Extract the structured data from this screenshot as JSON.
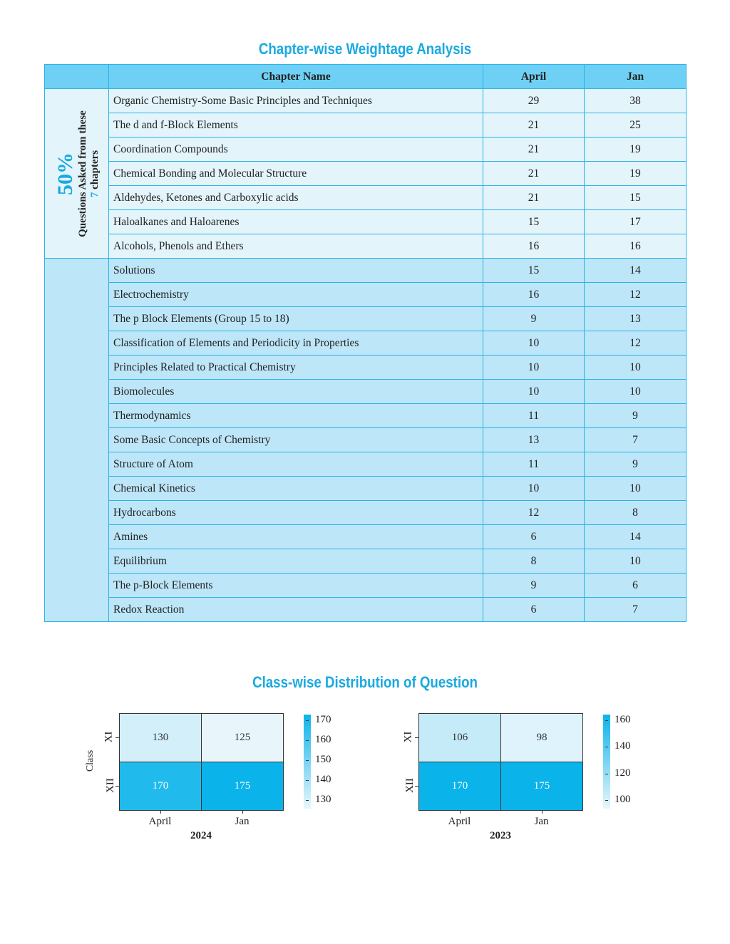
{
  "table_title": "Chapter-wise Weightage Analysis",
  "headers": {
    "chapter": "Chapter Name",
    "april": "April",
    "jan": "Jan"
  },
  "side_label": {
    "percent": "50%",
    "line1": "Questions Asked from these",
    "line2_num": "7",
    "line2_text": " chapters"
  },
  "rows": [
    {
      "name": "Organic Chemistry-Some Basic Principles and Techniques",
      "april": "29",
      "jan": "38"
    },
    {
      "name": "The d and f-Block Elements",
      "april": "21",
      "jan": "25"
    },
    {
      "name": "Coordination Compounds",
      "april": "21",
      "jan": "19"
    },
    {
      "name": "Chemical Bonding and Molecular Structure",
      "april": "21",
      "jan": "19"
    },
    {
      "name": "Aldehydes, Ketones and Carboxylic acids",
      "april": "21",
      "jan": "15"
    },
    {
      "name": "Haloalkanes and Haloarenes",
      "april": "15",
      "jan": "17"
    },
    {
      "name": "Alcohols, Phenols and Ethers",
      "april": "16",
      "jan": "16"
    },
    {
      "name": "Solutions",
      "april": "15",
      "jan": "14"
    },
    {
      "name": "Electrochemistry",
      "april": "16",
      "jan": "12"
    },
    {
      "name": "The p Block Elements (Group 15 to 18)",
      "april": "9",
      "jan": "13"
    },
    {
      "name": "Classification of Elements and Periodicity in Properties",
      "april": "10",
      "jan": "12"
    },
    {
      "name": "Principles Related to Practical Chemistry",
      "april": "10",
      "jan": "10"
    },
    {
      "name": "Biomolecules",
      "april": "10",
      "jan": "10"
    },
    {
      "name": "Thermodynamics",
      "april": "11",
      "jan": "9"
    },
    {
      "name": "Some Basic Concepts of Chemistry",
      "april": "13",
      "jan": "7"
    },
    {
      "name": "Structure of Atom",
      "april": "11",
      "jan": "9"
    },
    {
      "name": "Chemical Kinetics",
      "april": "10",
      "jan": "10"
    },
    {
      "name": "Hydrocarbons",
      "april": "12",
      "jan": "8"
    },
    {
      "name": "Amines",
      "april": "6",
      "jan": "14"
    },
    {
      "name": "Equilibrium",
      "april": "8",
      "jan": "10"
    },
    {
      "name": "The p-Block Elements",
      "april": "9",
      "jan": "6"
    },
    {
      "name": "Redox Reaction",
      "april": "6",
      "jan": "7"
    }
  ],
  "chart_title": "Class-wise Distribution of Question",
  "chart_data": [
    {
      "type": "heatmap",
      "title": "2024",
      "xlabel": "2024",
      "ylabel": "Class",
      "x_categories": [
        "April",
        "Jan"
      ],
      "y_categories": [
        "XI",
        "XII"
      ],
      "values": [
        [
          130,
          125
        ],
        [
          170,
          175
        ]
      ],
      "vmin": 125,
      "vmax": 175,
      "colorbar_ticks": [
        "170",
        "160",
        "150",
        "140",
        "130"
      ],
      "colorbar_values": [
        170,
        160,
        150,
        140,
        130
      ]
    },
    {
      "type": "heatmap",
      "title": "2023",
      "xlabel": "2023",
      "ylabel": "",
      "x_categories": [
        "April",
        "Jan"
      ],
      "y_categories": [
        "XI",
        "XII"
      ],
      "values": [
        [
          106,
          98
        ],
        [
          170,
          175
        ]
      ],
      "vmin": 95,
      "vmax": 165,
      "colorbar_ticks": [
        "160",
        "140",
        "120",
        "100"
      ],
      "colorbar_values": [
        160,
        140,
        120,
        100
      ]
    }
  ],
  "colors": {
    "accent": "#1aa9e0",
    "low": "#e8f6fc",
    "high": "#0ab3ea"
  }
}
